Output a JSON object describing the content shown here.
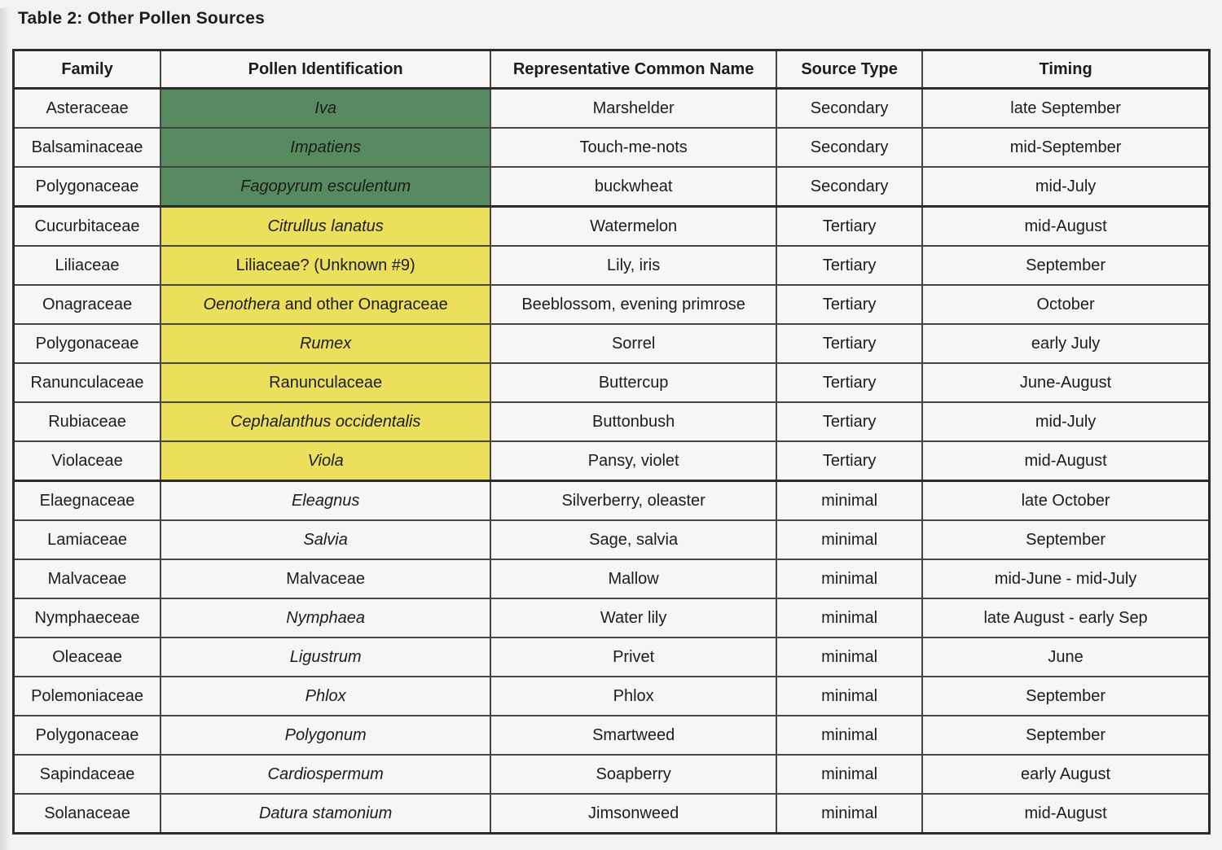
{
  "title": "Table 2: Other Pollen Sources",
  "colors": {
    "highlight_green": "#578b5f",
    "highlight_yellow": "#ecdf5c",
    "paper": "#f3f2f0",
    "cell_bg": "#f7f6f4",
    "border_dark": "#2b2b2b",
    "text": "#1c1c1c"
  },
  "table": {
    "columns": [
      "Family",
      "Pollen Identification",
      "Representative Common Name",
      "Source Type",
      "Timing"
    ],
    "rows": [
      {
        "family": "Asteraceae",
        "pollen": [
          {
            "text": "Iva",
            "italic": true
          }
        ],
        "common": "Marshelder",
        "source": "Secondary",
        "timing": "late September",
        "highlight": "green"
      },
      {
        "family": "Balsaminaceae",
        "pollen": [
          {
            "text": "Impatiens",
            "italic": true
          }
        ],
        "common": "Touch-me-nots",
        "source": "Secondary",
        "timing": "mid-September",
        "highlight": "green"
      },
      {
        "family": "Polygonaceae",
        "pollen": [
          {
            "text": "Fagopyrum esculentum",
            "italic": true
          }
        ],
        "common": "buckwheat",
        "source": "Secondary",
        "timing": "mid-July",
        "highlight": "green"
      },
      {
        "family": "Cucurbitaceae",
        "pollen": [
          {
            "text": "Citrullus lanatus",
            "italic": true
          }
        ],
        "common": "Watermelon",
        "source": "Tertiary",
        "timing": "mid-August",
        "highlight": "yellow"
      },
      {
        "family": "Liliaceae",
        "pollen": [
          {
            "text": "Liliaceae? (Unknown #9)",
            "italic": false
          }
        ],
        "common": "Lily, iris",
        "source": "Tertiary",
        "timing": "September",
        "highlight": "yellow"
      },
      {
        "family": "Onagraceae",
        "pollen": [
          {
            "text": "Oenothera",
            "italic": true
          },
          {
            "text": " and other Onagraceae",
            "italic": false
          }
        ],
        "common": "Beeblossom, evening primrose",
        "source": "Tertiary",
        "timing": "October",
        "highlight": "yellow"
      },
      {
        "family": "Polygonaceae",
        "pollen": [
          {
            "text": "Rumex",
            "italic": true
          }
        ],
        "common": "Sorrel",
        "source": "Tertiary",
        "timing": "early July",
        "highlight": "yellow"
      },
      {
        "family": "Ranunculaceae",
        "pollen": [
          {
            "text": "Ranunculaceae",
            "italic": false
          }
        ],
        "common": "Buttercup",
        "source": "Tertiary",
        "timing": "June-August",
        "highlight": "yellow"
      },
      {
        "family": "Rubiaceae",
        "pollen": [
          {
            "text": "Cephalanthus occidentalis",
            "italic": true
          }
        ],
        "common": "Buttonbush",
        "source": "Tertiary",
        "timing": "mid-July",
        "highlight": "yellow"
      },
      {
        "family": "Violaceae",
        "pollen": [
          {
            "text": "Viola",
            "italic": true
          }
        ],
        "common": "Pansy, violet",
        "source": "Tertiary",
        "timing": "mid-August",
        "highlight": "yellow"
      },
      {
        "family": "Elaegnaceae",
        "pollen": [
          {
            "text": "Eleagnus",
            "italic": true
          }
        ],
        "common": "Silverberry, oleaster",
        "source": "minimal",
        "timing": "late October",
        "highlight": "none"
      },
      {
        "family": "Lamiaceae",
        "pollen": [
          {
            "text": "Salvia",
            "italic": true
          }
        ],
        "common": "Sage, salvia",
        "source": "minimal",
        "timing": "September",
        "highlight": "none"
      },
      {
        "family": "Malvaceae",
        "pollen": [
          {
            "text": "Malvaceae",
            "italic": false
          }
        ],
        "common": "Mallow",
        "source": "minimal",
        "timing": "mid-June - mid-July",
        "highlight": "none"
      },
      {
        "family": "Nymphaeceae",
        "pollen": [
          {
            "text": "Nymphaea",
            "italic": true
          }
        ],
        "common": "Water lily",
        "source": "minimal",
        "timing": "late August - early Sep",
        "highlight": "none"
      },
      {
        "family": "Oleaceae",
        "pollen": [
          {
            "text": "Ligustrum",
            "italic": true
          }
        ],
        "common": "Privet",
        "source": "minimal",
        "timing": "June",
        "highlight": "none"
      },
      {
        "family": "Polemoniaceae",
        "pollen": [
          {
            "text": "Phlox",
            "italic": true
          }
        ],
        "common": "Phlox",
        "source": "minimal",
        "timing": "September",
        "highlight": "none"
      },
      {
        "family": "Polygonaceae",
        "pollen": [
          {
            "text": "Polygonum",
            "italic": true
          }
        ],
        "common": "Smartweed",
        "source": "minimal",
        "timing": "September",
        "highlight": "none"
      },
      {
        "family": "Sapindaceae",
        "pollen": [
          {
            "text": "Cardiospermum",
            "italic": true
          }
        ],
        "common": "Soapberry",
        "source": "minimal",
        "timing": "early August",
        "highlight": "none"
      },
      {
        "family": "Solanaceae",
        "pollen": [
          {
            "text": "Datura stamonium",
            "italic": true
          }
        ],
        "common": "Jimsonweed",
        "source": "minimal",
        "timing": "mid-August",
        "highlight": "none"
      }
    ]
  }
}
